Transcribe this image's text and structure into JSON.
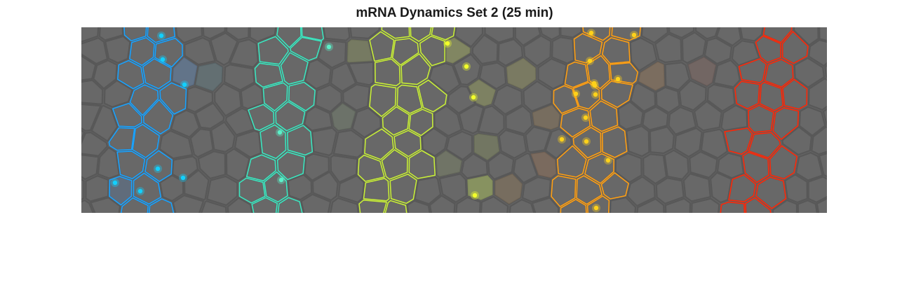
{
  "figure": {
    "title": "mRNA Dynamics Set 2 (25 min)"
  },
  "colors": {
    "background": "#646464",
    "cell_border": "#585858",
    "stripe_blue": "#1aa3ff",
    "stripe_teal": "#3de6c0",
    "stripe_yellow": "#c8ee3a",
    "stripe_orange": "#ffa015",
    "stripe_red": "#ff2a0a",
    "dot_blue": "#12d0ff",
    "dot_teal": "#5cf0c8",
    "dot_yellow": "#f2ff2a",
    "dot_orange": "#ffd21a"
  },
  "stripes": [
    {
      "name": "blue",
      "color_key": "stripe_blue"
    },
    {
      "name": "teal",
      "color_key": "stripe_teal"
    },
    {
      "name": "yellow",
      "color_key": "stripe_yellow"
    },
    {
      "name": "orange",
      "color_key": "stripe_orange"
    },
    {
      "name": "red",
      "color_key": "stripe_red"
    }
  ]
}
